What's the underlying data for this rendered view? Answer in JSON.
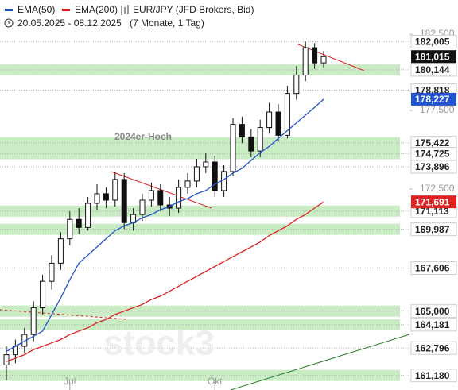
{
  "chart_data": {
    "type": "candlestick",
    "instrument": "EUR/JPY (JFD Brokers, Bid)",
    "date_range": "20.05.2025 - 08.12.2025",
    "period": "(7 Monate, 1 Tag)",
    "annotation": "2024er-Hoch",
    "watermark": "stock3",
    "log_scale": true,
    "ylim": [
      160.33,
      184.78
    ],
    "yticks": [
      {
        "value": 182.5,
        "label": "182,500"
      },
      {
        "value": 177.5,
        "label": "177,500"
      },
      {
        "value": 172.5,
        "label": "172,500"
      }
    ],
    "categories": [
      null,
      null,
      null,
      null,
      null,
      null,
      null,
      "Jul",
      null,
      null,
      null,
      null,
      null,
      null,
      null,
      null,
      null,
      null,
      null,
      null,
      null,
      null,
      null,
      "Okt",
      null,
      null,
      null,
      null,
      null,
      null,
      null,
      null,
      null,
      null,
      null,
      null
    ],
    "open": [
      161.8,
      162.4,
      162.9,
      163.6,
      165.2,
      166.8,
      167.9,
      169.4,
      170.6,
      170.1,
      171.6,
      172.2,
      171.8,
      173.1,
      170.4,
      170.9,
      171.8,
      172.4,
      171.5,
      171.3,
      172.6,
      173.0,
      173.9,
      174.2,
      172.4,
      173.6,
      176.6,
      175.8,
      174.9,
      176.4,
      177.4,
      175.9,
      178.6,
      179.8,
      181.6,
      180.6
    ],
    "high": [
      162.9,
      163.3,
      164.0,
      165.6,
      167.2,
      168.4,
      169.8,
      171.1,
      171.3,
      172.0,
      172.8,
      172.6,
      173.6,
      173.5,
      171.3,
      172.2,
      172.9,
      172.8,
      172.0,
      173.1,
      173.5,
      174.4,
      174.8,
      174.6,
      174.0,
      177.0,
      177.1,
      176.3,
      176.9,
      178.0,
      177.9,
      179.1,
      180.4,
      182.0,
      181.9,
      181.4
    ],
    "low": [
      160.9,
      161.9,
      162.5,
      163.2,
      164.8,
      166.3,
      167.5,
      169.0,
      169.7,
      169.9,
      171.2,
      171.3,
      171.4,
      170.0,
      169.9,
      170.5,
      171.4,
      171.1,
      170.8,
      171.0,
      172.2,
      172.6,
      173.5,
      172.0,
      172.0,
      173.3,
      175.4,
      174.5,
      174.5,
      176.0,
      175.5,
      175.7,
      178.2,
      179.4,
      180.2,
      180.3
    ],
    "close": [
      162.4,
      162.9,
      163.6,
      165.2,
      166.8,
      167.9,
      169.4,
      170.6,
      170.1,
      171.6,
      172.2,
      171.8,
      173.1,
      170.4,
      170.9,
      171.8,
      172.4,
      171.5,
      171.3,
      172.6,
      173.0,
      173.9,
      174.2,
      172.4,
      173.6,
      176.6,
      175.8,
      174.9,
      176.4,
      177.4,
      175.9,
      178.6,
      179.8,
      181.6,
      180.6,
      181.015
    ],
    "close_labels": [
      null,
      null,
      null,
      null,
      null,
      null,
      null,
      null,
      null,
      null,
      null,
      null,
      null,
      null,
      null,
      null,
      null,
      null,
      null,
      null,
      null,
      null,
      null,
      null,
      null,
      null,
      null,
      null,
      null,
      null,
      null,
      null,
      null,
      null,
      null,
      "181,015"
    ],
    "series": [
      {
        "name": "EMA(50)",
        "color": "#2255cc",
        "values": [
          162.6,
          162.9,
          163.2,
          163.5,
          163.8,
          164.8,
          165.8,
          166.9,
          167.9,
          168.4,
          168.9,
          169.4,
          169.9,
          170.2,
          170.4,
          170.7,
          170.9,
          171.2,
          171.4,
          171.7,
          171.9,
          172.2,
          172.4,
          172.8,
          173.1,
          173.5,
          173.8,
          174.3,
          174.8,
          175.2,
          175.7,
          176.2,
          176.7,
          177.2,
          177.7,
          178.227
        ],
        "value_labels": [
          null,
          null,
          null,
          null,
          null,
          null,
          null,
          null,
          null,
          null,
          null,
          null,
          null,
          null,
          null,
          null,
          null,
          null,
          null,
          null,
          null,
          null,
          null,
          null,
          null,
          null,
          null,
          null,
          null,
          null,
          null,
          null,
          null,
          null,
          null,
          "178,227"
        ]
      },
      {
        "name": "EMA(200)",
        "color": "#dd2222",
        "values": [
          162.0,
          162.2,
          162.4,
          162.7,
          162.9,
          163.1,
          163.3,
          163.6,
          163.8,
          164.0,
          164.3,
          164.5,
          164.8,
          165.0,
          165.2,
          165.4,
          165.7,
          165.9,
          166.2,
          166.5,
          166.8,
          167.1,
          167.4,
          167.7,
          168.0,
          168.3,
          168.6,
          168.9,
          169.2,
          169.6,
          169.9,
          170.2,
          170.6,
          170.9,
          171.3,
          171.691
        ],
        "value_labels": [
          null,
          null,
          null,
          null,
          null,
          null,
          null,
          null,
          null,
          null,
          null,
          null,
          null,
          null,
          null,
          null,
          null,
          null,
          null,
          null,
          null,
          null,
          null,
          null,
          null,
          null,
          null,
          null,
          null,
          null,
          null,
          null,
          null,
          null,
          null,
          "171,691"
        ]
      }
    ],
    "levels": [
      {
        "value": 182.005,
        "label": "182,005",
        "band": false
      },
      {
        "value": 180.144,
        "label": "180,144",
        "band": true
      },
      {
        "value": 178.818,
        "label": "178,818",
        "band": false
      },
      {
        "value": 175.422,
        "label": "175,422",
        "band": true
      },
      {
        "value": 174.725,
        "label": "174,725",
        "band": true
      },
      {
        "value": 173.896,
        "label": "173,896",
        "band": false
      },
      {
        "value": 171.113,
        "label": "171,113",
        "band": true
      },
      {
        "value": 169.987,
        "label": "169,987",
        "band": true
      },
      {
        "value": 167.606,
        "label": "167,606",
        "band": false
      },
      {
        "value": 165.0,
        "label": "165,000",
        "band": true
      },
      {
        "value": 164.181,
        "label": "164,181",
        "band": true
      },
      {
        "value": 162.796,
        "label": "162,796",
        "band": false
      },
      {
        "value": 161.18,
        "label": "161,180",
        "band": true
      }
    ]
  }
}
